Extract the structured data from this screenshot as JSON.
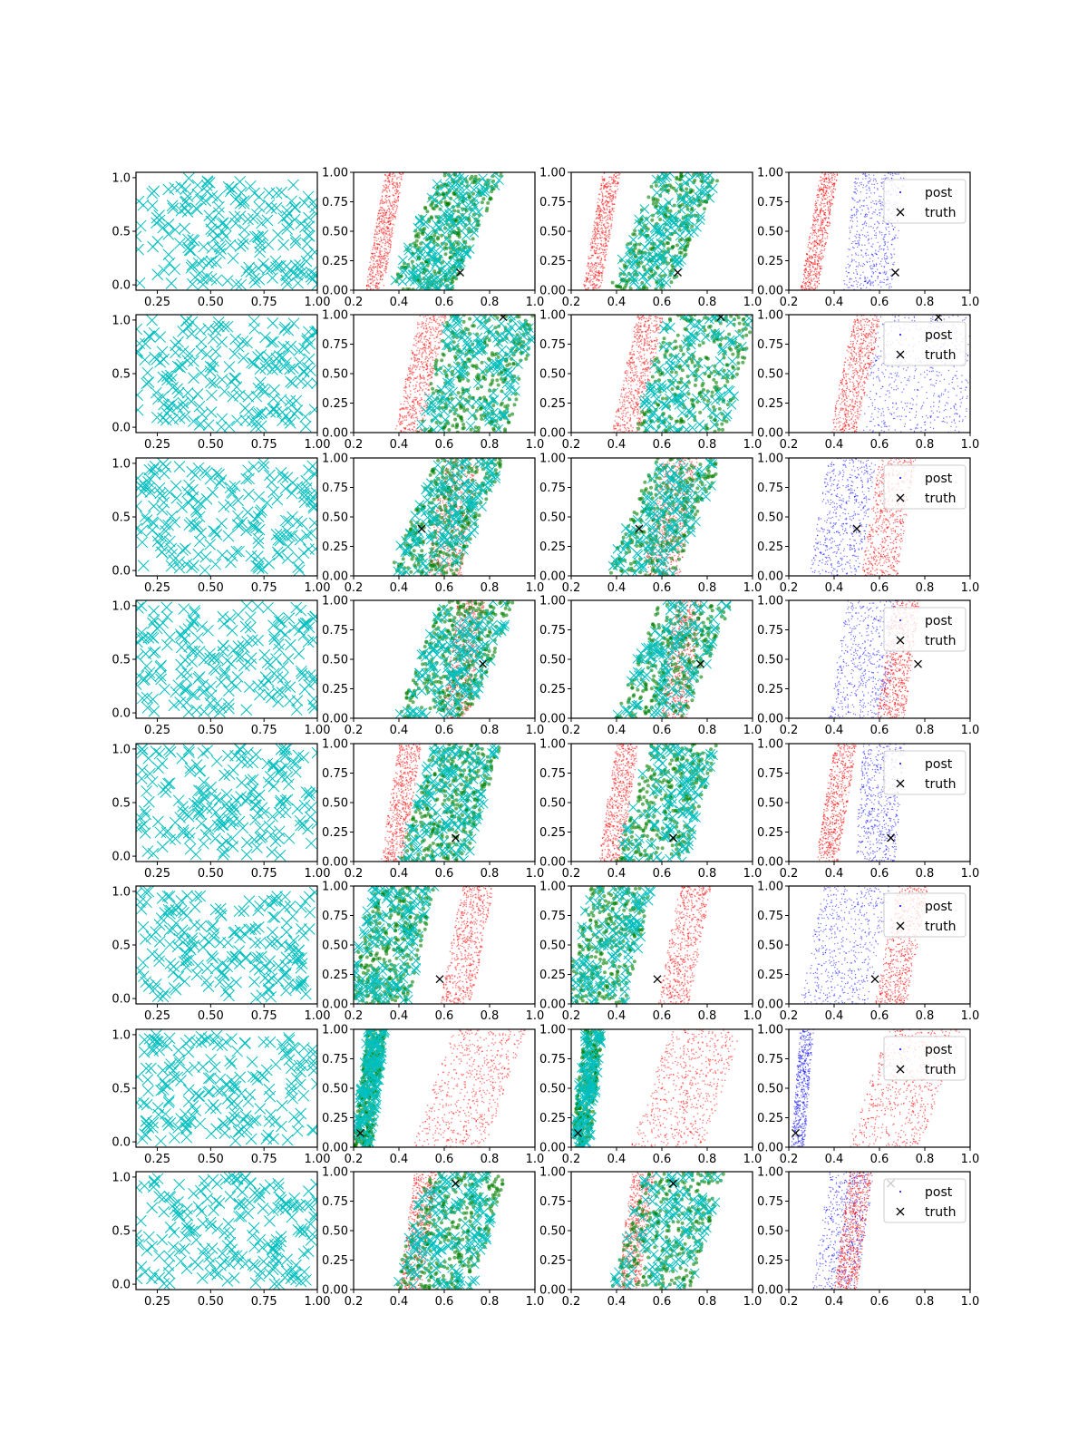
{
  "figure": {
    "rows": 8,
    "cols": 4,
    "colors": {
      "cyan": "#00bfbf",
      "red": "#ff0000",
      "green": "#008000",
      "blue": "#0000ff",
      "truth": "#000000",
      "axes": "#000000"
    },
    "legend": {
      "post_label": "post",
      "truth_label": "truth"
    }
  },
  "chart_data": [
    {
      "type": "scatter",
      "column": 1,
      "description_of_role": "x-marker grid of samples",
      "xlim": [
        0.15,
        1.0
      ],
      "ylim": [
        -0.05,
        1.05
      ],
      "xticks": [
        "0.25",
        "0.50",
        "0.75",
        "1.00"
      ],
      "xtick_values": [
        0.25,
        0.5,
        0.75,
        1.0
      ],
      "yticks": [
        "0.0",
        "0.5",
        "1.0"
      ],
      "ytick_values": [
        0.0,
        0.5,
        1.0
      ],
      "series": [
        {
          "marker": "x",
          "color": "cyan"
        }
      ]
    },
    {
      "type": "scatter",
      "column": 2,
      "xlim": [
        0.2,
        1.0
      ],
      "ylim": [
        0.0,
        1.0
      ],
      "xticks": [
        "0.2",
        "0.4",
        "0.6",
        "0.8",
        "1.0"
      ],
      "xtick_values": [
        0.2,
        0.4,
        0.6,
        0.8,
        1.0
      ],
      "yticks": [
        "0.00",
        "0.25",
        "0.50",
        "0.75",
        "1.00"
      ],
      "ytick_values": [
        0.0,
        0.25,
        0.5,
        0.75,
        1.0
      ]
    },
    {
      "type": "scatter",
      "column": 3,
      "xlim": [
        0.2,
        1.0
      ],
      "ylim": [
        0.0,
        1.0
      ],
      "xticks": [
        "0.2",
        "0.4",
        "0.6",
        "0.8",
        "1.0"
      ],
      "xtick_values": [
        0.2,
        0.4,
        0.6,
        0.8,
        1.0
      ],
      "yticks": [
        "0.00",
        "0.25",
        "0.50",
        "0.75",
        "1.00"
      ],
      "ytick_values": [
        0.0,
        0.25,
        0.5,
        0.75,
        1.0
      ]
    },
    {
      "type": "scatter",
      "column": 4,
      "xlim": [
        0.2,
        1.0
      ],
      "ylim": [
        0.0,
        1.0
      ],
      "xticks": [
        "0.2",
        "0.4",
        "0.6",
        "0.8",
        "1.0"
      ],
      "xtick_values": [
        0.2,
        0.4,
        0.6,
        0.8,
        1.0
      ],
      "yticks": [
        "0.00",
        "0.25",
        "0.50",
        "0.75",
        "1.00"
      ],
      "ytick_values": [
        0.0,
        0.25,
        0.5,
        0.75,
        1.0
      ],
      "legend": [
        "post",
        "truth"
      ],
      "legend_position": "upper-right"
    }
  ],
  "rows_data": [
    {
      "truth": [
        0.67,
        0.15
      ],
      "red_band": {
        "x_at_y0": 0.29,
        "x_at_y1": 0.38,
        "width": 0.08
      },
      "green_band": {
        "x_at_y0": 0.5,
        "x_at_y1": 0.72,
        "width": 0.28
      },
      "blue_band": {
        "x_at_y0": 0.55,
        "x_at_y1": 0.6,
        "width": 0.22
      }
    },
    {
      "truth": [
        0.86,
        0.98
      ],
      "red_band": {
        "x_at_y0": 0.44,
        "x_at_y1": 0.55,
        "width": 0.12
      },
      "green_band": {
        "x_at_y0": 0.68,
        "x_at_y1": 0.82,
        "width": 0.4
      },
      "blue_band": {
        "x_at_y0": 0.75,
        "x_at_y1": 0.8,
        "width": 0.45
      }
    },
    {
      "truth": [
        0.5,
        0.4
      ],
      "red_band": {
        "x_at_y0": 0.6,
        "x_at_y1": 0.68,
        "width": 0.16
      },
      "green_band": {
        "x_at_y0": 0.5,
        "x_at_y1": 0.72,
        "width": 0.3
      },
      "blue_band": {
        "x_at_y0": 0.4,
        "x_at_y1": 0.48,
        "width": 0.22
      }
    },
    {
      "truth": [
        0.77,
        0.46
      ],
      "red_band": {
        "x_at_y0": 0.65,
        "x_at_y1": 0.72,
        "width": 0.12
      },
      "green_band": {
        "x_at_y0": 0.55,
        "x_at_y1": 0.75,
        "width": 0.32
      },
      "blue_band": {
        "x_at_y0": 0.5,
        "x_at_y1": 0.58,
        "width": 0.25
      }
    },
    {
      "truth": [
        0.65,
        0.2
      ],
      "red_band": {
        "x_at_y0": 0.37,
        "x_at_y1": 0.45,
        "width": 0.1
      },
      "green_band": {
        "x_at_y0": 0.55,
        "x_at_y1": 0.7,
        "width": 0.3
      },
      "blue_band": {
        "x_at_y0": 0.58,
        "x_at_y1": 0.62,
        "width": 0.18
      }
    },
    {
      "truth": [
        0.58,
        0.21
      ],
      "red_band": {
        "x_at_y0": 0.65,
        "x_at_y1": 0.75,
        "width": 0.14
      },
      "green_band": {
        "x_at_y0": 0.3,
        "x_at_y1": 0.42,
        "width": 0.28
      },
      "blue_band": {
        "x_at_y0": 0.4,
        "x_at_y1": 0.5,
        "width": 0.3
      }
    },
    {
      "truth": [
        0.23,
        0.12
      ],
      "red_band": {
        "x_at_y0": 0.62,
        "x_at_y1": 0.8,
        "width": 0.32
      },
      "green_band": {
        "x_at_y0": 0.24,
        "x_at_y1": 0.3,
        "width": 0.08
      },
      "blue_band": {
        "x_at_y0": 0.24,
        "x_at_y1": 0.28,
        "width": 0.06
      }
    },
    {
      "truth": [
        0.65,
        0.9
      ],
      "red_band": {
        "x_at_y0": 0.45,
        "x_at_y1": 0.52,
        "width": 0.1
      },
      "green_band": {
        "x_at_y0": 0.55,
        "x_at_y1": 0.7,
        "width": 0.35
      },
      "blue_band": {
        "x_at_y0": 0.4,
        "x_at_y1": 0.48,
        "width": 0.2
      }
    }
  ]
}
